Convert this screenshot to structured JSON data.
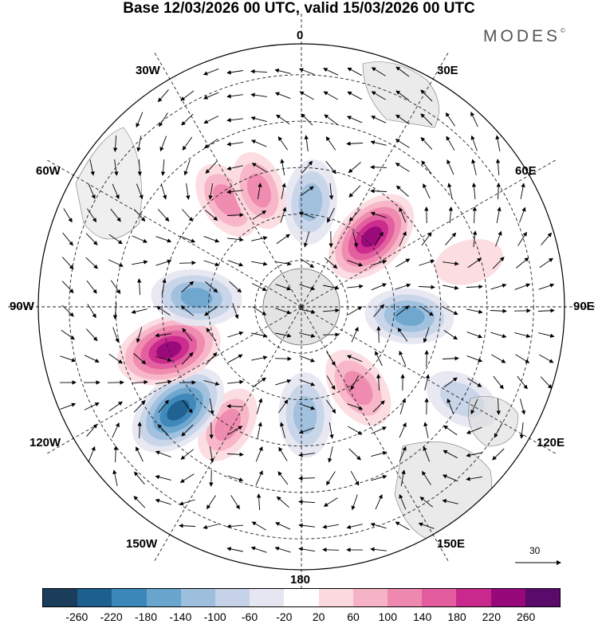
{
  "title": "Base 12/03/2026 00 UTC, valid 15/03/2026 00 UTC",
  "brand": {
    "name": "MODES",
    "mark": "©"
  },
  "longitude_labels": {
    "n0": "0",
    "e30": "30E",
    "e60": "60E",
    "e90": "90E",
    "e120": "120E",
    "e150": "150E",
    "s180": "180",
    "w150": "150W",
    "w120": "120W",
    "w90": "90W",
    "w60": "60W",
    "w30": "30W"
  },
  "wind_scale_label": "30",
  "colorbar": {
    "colors": [
      "#1a3d5c",
      "#1d5f8f",
      "#3b87ba",
      "#6aa5cd",
      "#9dbfdd",
      "#c6d2e8",
      "#e6e6f2",
      "#ffffff",
      "#fbdadf",
      "#f6b3c5",
      "#ee88ae",
      "#e25c9e",
      "#c9288c",
      "#97087a",
      "#5a0a6a"
    ],
    "ticks": [
      "-260",
      "-220",
      "-180",
      "-140",
      "-100",
      "-60",
      "-20",
      "20",
      "60",
      "100",
      "140",
      "180",
      "220",
      "260"
    ]
  },
  "anomalies": [
    {
      "name": "neg",
      "lon": 5,
      "lat": -56,
      "value": -130
    },
    {
      "name": "pos",
      "lon": 45,
      "lat": -58,
      "value": 220
    },
    {
      "name": "neg",
      "lon": 95,
      "lat": -55,
      "value": -150
    },
    {
      "name": "pos",
      "lon": 145,
      "lat": -58,
      "value": 130
    },
    {
      "name": "neg",
      "lon": 178,
      "lat": -55,
      "value": -130
    },
    {
      "name": "pos",
      "lon": -148,
      "lat": -45,
      "value": 100
    },
    {
      "name": "neg",
      "lon": -130,
      "lat": -38,
      "value": -240
    },
    {
      "name": "pos",
      "lon": -108,
      "lat": -45,
      "value": 240
    },
    {
      "name": "neg",
      "lon": -85,
      "lat": -56,
      "value": -160
    },
    {
      "name": "pos",
      "lon": -35,
      "lat": -48,
      "value": 110
    },
    {
      "name": "pos",
      "lon": -20,
      "lat": -50,
      "value": 100
    },
    {
      "name": "neg",
      "lon": 120,
      "lat": -30,
      "value": -90
    },
    {
      "name": "pos",
      "lon": 75,
      "lat": -34,
      "value": 50
    }
  ]
}
